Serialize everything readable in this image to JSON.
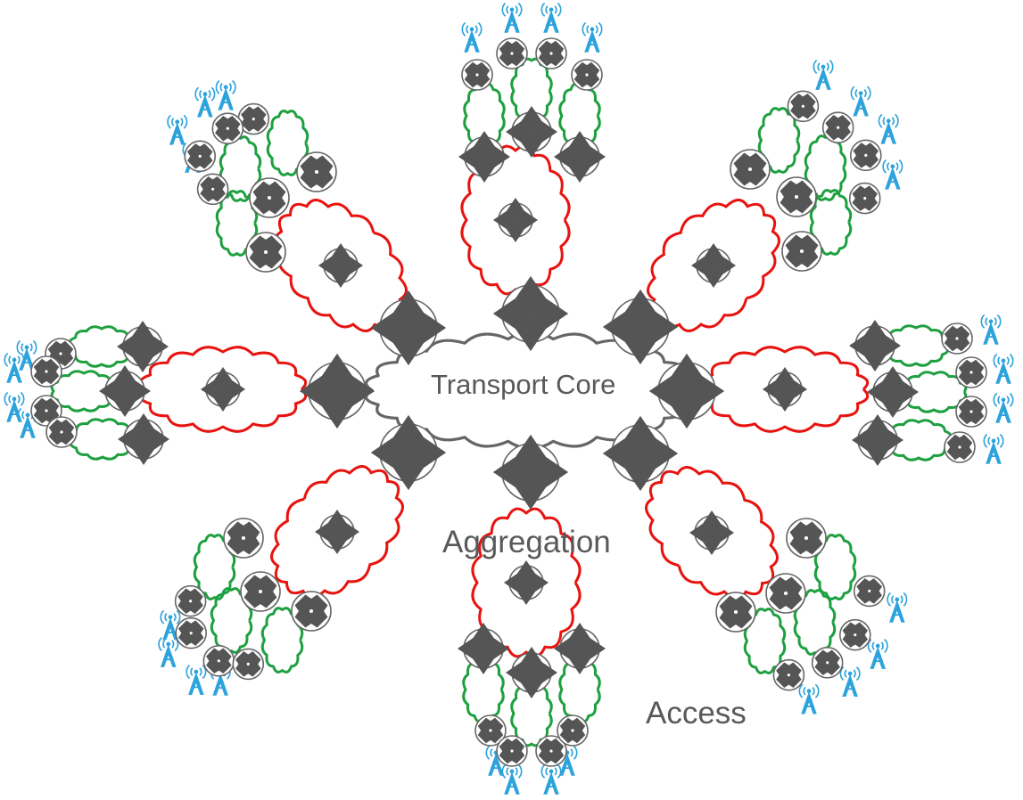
{
  "labels": {
    "core": "Transport Core",
    "aggregation": "Aggregation",
    "access": "Access"
  },
  "colors": {
    "core_cloud": "#666666",
    "aggregation_cloud": "#e8130f",
    "access_cloud": "#1ea040",
    "router_fill": "#ffffff",
    "router_stroke": "#666666",
    "router_symbol": "#555555",
    "tower": "#2da3dc",
    "text": "#595959"
  },
  "icons": {
    "router": "router-icon",
    "switch": "switch-icon",
    "cell_tower": "cell-tower-icon",
    "cloud": "cloud-icon"
  },
  "topology": {
    "core_edge_routers": 8,
    "aggregation_clusters": 8
  }
}
